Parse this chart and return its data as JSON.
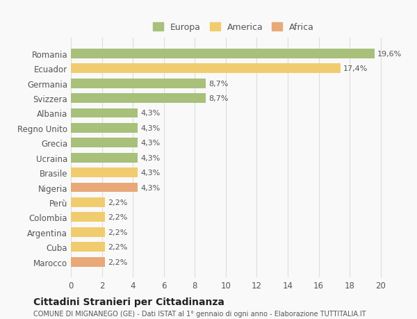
{
  "countries": [
    "Romania",
    "Ecuador",
    "Germania",
    "Svizzera",
    "Albania",
    "Regno Unito",
    "Grecia",
    "Ucraina",
    "Brasile",
    "Nigeria",
    "Perù",
    "Colombia",
    "Argentina",
    "Cuba",
    "Marocco"
  ],
  "values": [
    19.6,
    17.4,
    8.7,
    8.7,
    4.3,
    4.3,
    4.3,
    4.3,
    4.3,
    4.3,
    2.2,
    2.2,
    2.2,
    2.2,
    2.2
  ],
  "labels": [
    "19,6%",
    "17,4%",
    "8,7%",
    "8,7%",
    "4,3%",
    "4,3%",
    "4,3%",
    "4,3%",
    "4,3%",
    "4,3%",
    "2,2%",
    "2,2%",
    "2,2%",
    "2,2%",
    "2,2%"
  ],
  "continents": [
    "Europa",
    "America",
    "Europa",
    "Europa",
    "Europa",
    "Europa",
    "Europa",
    "Europa",
    "America",
    "Africa",
    "America",
    "America",
    "America",
    "America",
    "Africa"
  ],
  "colors": {
    "Europa": "#a8c07a",
    "America": "#f0cc6e",
    "Africa": "#e8a878"
  },
  "legend_order": [
    "Europa",
    "America",
    "Africa"
  ],
  "xlim": [
    0,
    21
  ],
  "xticks": [
    0,
    2,
    4,
    6,
    8,
    10,
    12,
    14,
    16,
    18,
    20
  ],
  "title": "Cittadini Stranieri per Cittadinanza",
  "subtitle": "COMUNE DI MIGNANEGO (GE) - Dati ISTAT al 1° gennaio di ogni anno - Elaborazione TUTTITALIA.IT",
  "background_color": "#f9f9f9",
  "grid_color": "#dddddd"
}
